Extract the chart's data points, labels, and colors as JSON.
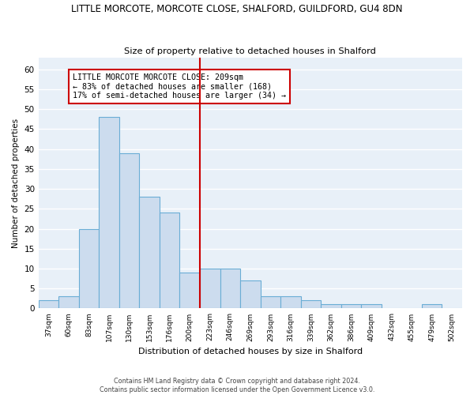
{
  "title": "LITTLE MORCOTE, MORCOTE CLOSE, SHALFORD, GUILDFORD, GU4 8DN",
  "subtitle": "Size of property relative to detached houses in Shalford",
  "xlabel": "Distribution of detached houses by size in Shalford",
  "ylabel": "Number of detached properties",
  "categories": [
    "37sqm",
    "60sqm",
    "83sqm",
    "107sqm",
    "130sqm",
    "153sqm",
    "176sqm",
    "200sqm",
    "223sqm",
    "246sqm",
    "269sqm",
    "293sqm",
    "316sqm",
    "339sqm",
    "362sqm",
    "386sqm",
    "409sqm",
    "432sqm",
    "455sqm",
    "479sqm",
    "502sqm"
  ],
  "values": [
    2,
    3,
    20,
    48,
    39,
    28,
    24,
    9,
    10,
    10,
    7,
    3,
    3,
    2,
    1,
    1,
    1,
    0,
    0,
    1,
    0
  ],
  "bar_color": "#ccdcee",
  "bar_edgecolor": "#6aadd5",
  "background_color": "#e8f0f8",
  "grid_color": "#ffffff",
  "vline_x": 7.5,
  "vline_color": "#cc0000",
  "annotation_text": "LITTLE MORCOTE MORCOTE CLOSE: 209sqm\n← 83% of detached houses are smaller (168)\n17% of semi-detached houses are larger (34) →",
  "annotation_box_edgecolor": "#cc0000",
  "ylim": [
    0,
    63
  ],
  "yticks": [
    0,
    5,
    10,
    15,
    20,
    25,
    30,
    35,
    40,
    45,
    50,
    55,
    60
  ],
  "footer1": "Contains HM Land Registry data © Crown copyright and database right 2024.",
  "footer2": "Contains public sector information licensed under the Open Government Licence v3.0."
}
